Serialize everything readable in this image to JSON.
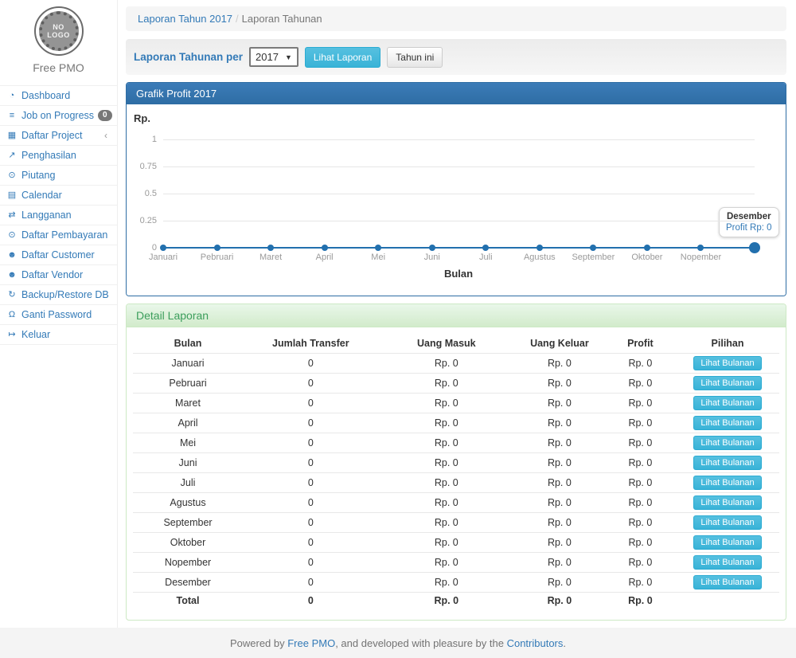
{
  "brand": {
    "logo_line1": "NO",
    "logo_line2": "LOGO",
    "name": "Free PMO"
  },
  "sidebar": {
    "items": [
      {
        "label": "Dashboard",
        "icon": "dashboard",
        "glyph": "◔"
      },
      {
        "label": "Job on Progress",
        "icon": "tasks",
        "glyph": "≡",
        "badge": "0"
      },
      {
        "label": "Daftar Project",
        "icon": "table",
        "glyph": "▦",
        "chevron": "‹"
      },
      {
        "label": "Penghasilan",
        "icon": "line-chart",
        "glyph": "↗"
      },
      {
        "label": "Piutang",
        "icon": "money",
        "glyph": "⊙"
      },
      {
        "label": "Calendar",
        "icon": "calendar",
        "glyph": "▤"
      },
      {
        "label": "Langganan",
        "icon": "exchange",
        "glyph": "⇄"
      },
      {
        "label": "Daftar Pembayaran",
        "icon": "money",
        "glyph": "⊙"
      },
      {
        "label": "Daftar Customer",
        "icon": "users",
        "glyph": "☻"
      },
      {
        "label": "Daftar Vendor",
        "icon": "users",
        "glyph": "☻"
      },
      {
        "label": "Backup/Restore DB",
        "icon": "refresh",
        "glyph": "↻"
      },
      {
        "label": "Ganti Password",
        "icon": "lock",
        "glyph": "Ω"
      },
      {
        "label": "Keluar",
        "icon": "sign-out",
        "glyph": "↦"
      }
    ]
  },
  "breadcrumb": {
    "link": "Laporan Tahun 2017",
    "separator": "/",
    "current": "Laporan Tahunan"
  },
  "filter": {
    "label": "Laporan Tahunan per",
    "year": "2017",
    "view_button": "Lihat Laporan",
    "this_year_button": "Tahun ini"
  },
  "chart_panel": {
    "title": "Grafik Profit 2017"
  },
  "chart_data": {
    "type": "line",
    "title": "Grafik Profit 2017",
    "x": [
      "Januari",
      "Pebruari",
      "Maret",
      "April",
      "Mei",
      "Juni",
      "Juli",
      "Agustus",
      "September",
      "Oktober",
      "Nopember",
      "Desember"
    ],
    "series": [
      {
        "name": "Profit",
        "values": [
          0,
          0,
          0,
          0,
          0,
          0,
          0,
          0,
          0,
          0,
          0,
          0
        ]
      }
    ],
    "xlabel": "Bulan",
    "ylabel": "Rp.",
    "ylim": [
      0,
      1
    ],
    "yticks": [
      0,
      0.25,
      0.5,
      0.75,
      1
    ],
    "grid": true,
    "legend": "none",
    "x_axis_last_label_hidden": true,
    "tooltip": {
      "label": "Desember",
      "value_text": "Profit Rp: 0"
    }
  },
  "detail_panel": {
    "title": "Detail Laporan",
    "columns": [
      "Bulan",
      "Jumlah Transfer",
      "Uang Masuk",
      "Uang Keluar",
      "Profit",
      "Pilihan"
    ],
    "rows": [
      {
        "bulan": "Januari",
        "jumlah_transfer": "0",
        "uang_masuk": "Rp. 0",
        "uang_keluar": "Rp. 0",
        "profit": "Rp. 0",
        "action": "Lihat Bulanan"
      },
      {
        "bulan": "Pebruari",
        "jumlah_transfer": "0",
        "uang_masuk": "Rp. 0",
        "uang_keluar": "Rp. 0",
        "profit": "Rp. 0",
        "action": "Lihat Bulanan"
      },
      {
        "bulan": "Maret",
        "jumlah_transfer": "0",
        "uang_masuk": "Rp. 0",
        "uang_keluar": "Rp. 0",
        "profit": "Rp. 0",
        "action": "Lihat Bulanan"
      },
      {
        "bulan": "April",
        "jumlah_transfer": "0",
        "uang_masuk": "Rp. 0",
        "uang_keluar": "Rp. 0",
        "profit": "Rp. 0",
        "action": "Lihat Bulanan"
      },
      {
        "bulan": "Mei",
        "jumlah_transfer": "0",
        "uang_masuk": "Rp. 0",
        "uang_keluar": "Rp. 0",
        "profit": "Rp. 0",
        "action": "Lihat Bulanan"
      },
      {
        "bulan": "Juni",
        "jumlah_transfer": "0",
        "uang_masuk": "Rp. 0",
        "uang_keluar": "Rp. 0",
        "profit": "Rp. 0",
        "action": "Lihat Bulanan"
      },
      {
        "bulan": "Juli",
        "jumlah_transfer": "0",
        "uang_masuk": "Rp. 0",
        "uang_keluar": "Rp. 0",
        "profit": "Rp. 0",
        "action": "Lihat Bulanan"
      },
      {
        "bulan": "Agustus",
        "jumlah_transfer": "0",
        "uang_masuk": "Rp. 0",
        "uang_keluar": "Rp. 0",
        "profit": "Rp. 0",
        "action": "Lihat Bulanan"
      },
      {
        "bulan": "September",
        "jumlah_transfer": "0",
        "uang_masuk": "Rp. 0",
        "uang_keluar": "Rp. 0",
        "profit": "Rp. 0",
        "action": "Lihat Bulanan"
      },
      {
        "bulan": "Oktober",
        "jumlah_transfer": "0",
        "uang_masuk": "Rp. 0",
        "uang_keluar": "Rp. 0",
        "profit": "Rp. 0",
        "action": "Lihat Bulanan"
      },
      {
        "bulan": "Nopember",
        "jumlah_transfer": "0",
        "uang_masuk": "Rp. 0",
        "uang_keluar": "Rp. 0",
        "profit": "Rp. 0",
        "action": "Lihat Bulanan"
      },
      {
        "bulan": "Desember",
        "jumlah_transfer": "0",
        "uang_masuk": "Rp. 0",
        "uang_keluar": "Rp. 0",
        "profit": "Rp. 0",
        "action": "Lihat Bulanan"
      }
    ],
    "total_row": {
      "bulan": "Total",
      "jumlah_transfer": "0",
      "uang_masuk": "Rp. 0",
      "uang_keluar": "Rp. 0",
      "profit": "Rp. 0"
    }
  },
  "footer": {
    "powered_prefix": "Powered by ",
    "link1": "Free PMO",
    "middle": ", and developed with pleasure by the ",
    "link2": "Contributors",
    "suffix": "."
  },
  "colors": {
    "link_blue": "#337ab7",
    "panel_primary": "#2e6da4",
    "info_button": "#39b3d7",
    "success_text": "#3c9e5c",
    "chart_line": "#2270ae",
    "badge_gray": "#777777",
    "footer_bg": "#f4f4f4"
  }
}
